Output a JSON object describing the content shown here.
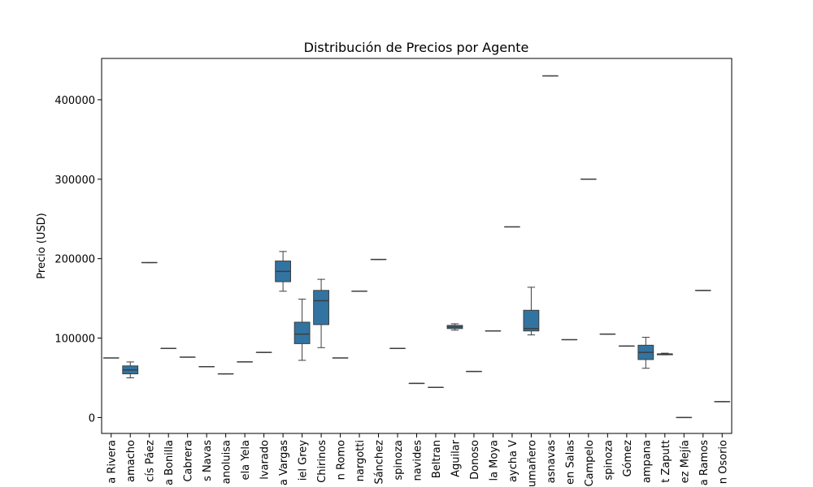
{
  "chart_data": {
    "type": "box",
    "title": "Distribución de Precios por Agente",
    "xlabel": "",
    "ylabel": "Precio (USD)",
    "ylim": [
      -20000,
      452000
    ],
    "yticks": [
      0,
      100000,
      200000,
      300000,
      400000
    ],
    "grid": false,
    "box_color": "#3274a1",
    "categories": [
      "a Rivera",
      "amacho",
      "cís Páez",
      "a Bonilla",
      "Cabrera",
      "s Navas",
      "anoluisa",
      "ela Yela",
      "lvarado",
      "a Vargas",
      "iel Grey",
      "Chirinos",
      "n Romo",
      "nargotti",
      "Sánchez",
      "spinoza",
      "navides",
      "Beltran",
      "Aguilar",
      "Donoso",
      "la Moya",
      "aycha V",
      "umañero",
      "asnavas",
      "en Salas",
      "Campelo",
      "spinoza",
      "Gómez",
      "ampana",
      "t Zaputt",
      "ez Mejía",
      "a Ramos",
      "n Osorio"
    ],
    "boxes": [
      {
        "whislo": 75000,
        "q1": 75000,
        "med": 75000,
        "q3": 75000,
        "whishi": 75000
      },
      {
        "whislo": 50000,
        "q1": 55000,
        "med": 60000,
        "q3": 65000,
        "whishi": 70000
      },
      {
        "whislo": 195000,
        "q1": 195000,
        "med": 195000,
        "q3": 195000,
        "whishi": 195000
      },
      {
        "whislo": 87000,
        "q1": 87000,
        "med": 87000,
        "q3": 87000,
        "whishi": 87000
      },
      {
        "whislo": 76000,
        "q1": 76000,
        "med": 76000,
        "q3": 76000,
        "whishi": 76000
      },
      {
        "whislo": 64000,
        "q1": 64000,
        "med": 64000,
        "q3": 64000,
        "whishi": 64000
      },
      {
        "whislo": 55000,
        "q1": 55000,
        "med": 55000,
        "q3": 55000,
        "whishi": 55000
      },
      {
        "whislo": 70000,
        "q1": 70000,
        "med": 70000,
        "q3": 70000,
        "whishi": 70000
      },
      {
        "whislo": 82000,
        "q1": 82000,
        "med": 82000,
        "q3": 82000,
        "whishi": 82000
      },
      {
        "whislo": 159000,
        "q1": 171000,
        "med": 184000,
        "q3": 197000,
        "whishi": 209000
      },
      {
        "whislo": 72000,
        "q1": 93000,
        "med": 105000,
        "q3": 120000,
        "whishi": 149000
      },
      {
        "whislo": 88000,
        "q1": 117000,
        "med": 147000,
        "q3": 160000,
        "whishi": 174000
      },
      {
        "whislo": 75000,
        "q1": 75000,
        "med": 75000,
        "q3": 75000,
        "whishi": 75000
      },
      {
        "whislo": 159000,
        "q1": 159000,
        "med": 159000,
        "q3": 159000,
        "whishi": 159000
      },
      {
        "whislo": 199000,
        "q1": 199000,
        "med": 199000,
        "q3": 199000,
        "whishi": 199000
      },
      {
        "whislo": 87000,
        "q1": 87000,
        "med": 87000,
        "q3": 87000,
        "whishi": 87000
      },
      {
        "whislo": 43000,
        "q1": 43000,
        "med": 43000,
        "q3": 43000,
        "whishi": 43000
      },
      {
        "whislo": 38000,
        "q1": 38000,
        "med": 38000,
        "q3": 38000,
        "whishi": 38000
      },
      {
        "whislo": 110000,
        "q1": 112000,
        "med": 114000,
        "q3": 116000,
        "whishi": 118000
      },
      {
        "whislo": 58000,
        "q1": 58000,
        "med": 58000,
        "q3": 58000,
        "whishi": 58000
      },
      {
        "whislo": 109000,
        "q1": 109000,
        "med": 109000,
        "q3": 109000,
        "whishi": 109000
      },
      {
        "whislo": 240000,
        "q1": 240000,
        "med": 240000,
        "q3": 240000,
        "whishi": 240000
      },
      {
        "whislo": 104000,
        "q1": 109000,
        "med": 112000,
        "q3": 135000,
        "whishi": 164000
      },
      {
        "whislo": 430000,
        "q1": 430000,
        "med": 430000,
        "q3": 430000,
        "whishi": 430000
      },
      {
        "whislo": 98000,
        "q1": 98000,
        "med": 98000,
        "q3": 98000,
        "whishi": 98000
      },
      {
        "whislo": 300000,
        "q1": 300000,
        "med": 300000,
        "q3": 300000,
        "whishi": 300000
      },
      {
        "whislo": 105000,
        "q1": 105000,
        "med": 105000,
        "q3": 105000,
        "whishi": 105000
      },
      {
        "whislo": 90000,
        "q1": 90000,
        "med": 90000,
        "q3": 90000,
        "whishi": 90000
      },
      {
        "whislo": 62000,
        "q1": 73000,
        "med": 82000,
        "q3": 91000,
        "whishi": 101000
      },
      {
        "whislo": 79000,
        "q1": 79000,
        "med": 80000,
        "q3": 80000,
        "whishi": 81000
      },
      {
        "whislo": 0,
        "q1": 0,
        "med": 0,
        "q3": 0,
        "whishi": 0
      },
      {
        "whislo": 160000,
        "q1": 160000,
        "med": 160000,
        "q3": 160000,
        "whishi": 160000
      },
      {
        "whislo": 20000,
        "q1": 20000,
        "med": 20000,
        "q3": 20000,
        "whishi": 20000
      }
    ]
  }
}
